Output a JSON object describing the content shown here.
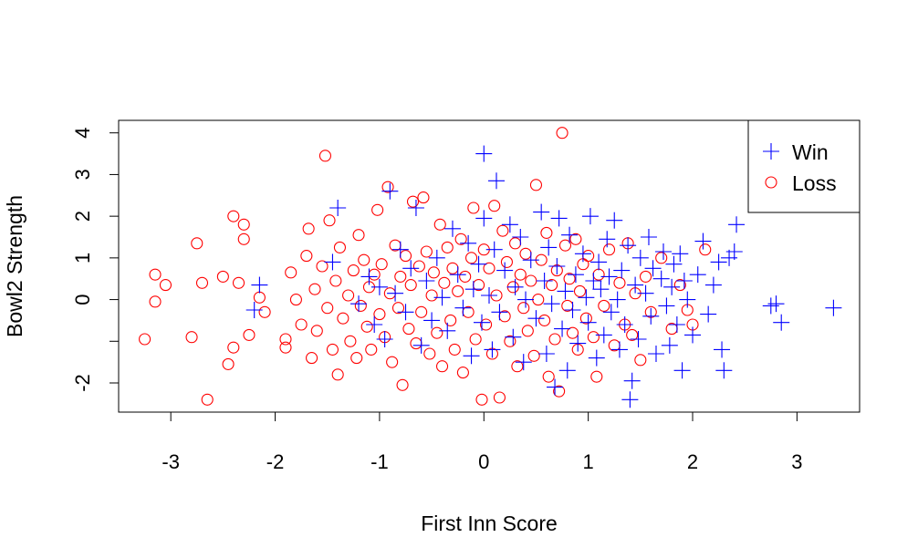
{
  "chart_data": {
    "type": "scatter",
    "title": "",
    "xlabel": "First Inn Score",
    "ylabel": "Bowl2 Strength",
    "xlim": [
      -3.5,
      3.6
    ],
    "ylim": [
      -2.7,
      4.3
    ],
    "xticks": [
      -3,
      -2,
      -1,
      0,
      1,
      2,
      3
    ],
    "yticks": [
      -2,
      -1,
      0,
      1,
      2,
      3,
      4
    ],
    "ytick_labels": [
      "-2",
      "",
      "0",
      "1",
      "2",
      "3",
      "4"
    ],
    "grid": false,
    "legend_position": "top-right",
    "series": [
      {
        "name": "Win",
        "marker": "plus",
        "color": "#0000ff",
        "points": [
          [
            -2.15,
            0.35
          ],
          [
            -2.2,
            -0.25
          ],
          [
            -1.45,
            0.9
          ],
          [
            -1.4,
            2.2
          ],
          [
            -1.2,
            -0.1
          ],
          [
            -1.1,
            0.55
          ],
          [
            -1.05,
            -0.6
          ],
          [
            -1.0,
            0.3
          ],
          [
            -0.95,
            -0.95
          ],
          [
            -0.9,
            2.6
          ],
          [
            -0.85,
            0.15
          ],
          [
            -0.8,
            1.2
          ],
          [
            -0.75,
            -0.3
          ],
          [
            -0.7,
            0.75
          ],
          [
            -0.65,
            2.2
          ],
          [
            -0.6,
            -1.1
          ],
          [
            -0.55,
            0.45
          ],
          [
            -0.5,
            -0.5
          ],
          [
            -0.45,
            1.0
          ],
          [
            -0.4,
            0.05
          ],
          [
            -0.35,
            -0.75
          ],
          [
            -0.3,
            1.7
          ],
          [
            -0.25,
            0.6
          ],
          [
            -0.2,
            -0.2
          ],
          [
            -0.15,
            1.35
          ],
          [
            -0.12,
            -1.35
          ],
          [
            -0.1,
            0.25
          ],
          [
            -0.05,
            0.85
          ],
          [
            -0.02,
            -0.55
          ],
          [
            0.0,
            1.95
          ],
          [
            0.0,
            3.5
          ],
          [
            0.05,
            0.1
          ],
          [
            0.08,
            -1.2
          ],
          [
            0.1,
            1.2
          ],
          [
            0.12,
            2.85
          ],
          [
            0.15,
            -0.3
          ],
          [
            0.2,
            0.7
          ],
          [
            0.25,
            1.8
          ],
          [
            0.28,
            -0.9
          ],
          [
            0.3,
            0.3
          ],
          [
            0.35,
            1.5
          ],
          [
            0.38,
            -1.5
          ],
          [
            0.4,
            0.0
          ],
          [
            0.45,
            0.95
          ],
          [
            0.5,
            -0.45
          ],
          [
            0.55,
            2.1
          ],
          [
            0.58,
            0.45
          ],
          [
            0.6,
            -1.3
          ],
          [
            0.62,
            1.25
          ],
          [
            0.65,
            -0.1
          ],
          [
            0.68,
            -2.1
          ],
          [
            0.7,
            0.8
          ],
          [
            0.72,
            1.95
          ],
          [
            0.75,
            -0.7
          ],
          [
            0.78,
            0.2
          ],
          [
            0.8,
            -1.7
          ],
          [
            0.82,
            1.55
          ],
          [
            0.85,
            -0.25
          ],
          [
            0.88,
            0.6
          ],
          [
            0.9,
            -1.05
          ],
          [
            0.95,
            1.1
          ],
          [
            0.98,
            0.05
          ],
          [
            1.0,
            -0.55
          ],
          [
            1.02,
            2.0
          ],
          [
            1.05,
            0.45
          ],
          [
            1.08,
            -1.4
          ],
          [
            1.1,
            0.9
          ],
          [
            1.12,
            0.25
          ],
          [
            1.15,
            -0.85
          ],
          [
            1.18,
            1.45
          ],
          [
            1.2,
            0.55
          ],
          [
            1.22,
            -0.3
          ],
          [
            1.25,
            1.9
          ],
          [
            1.28,
            0.0
          ],
          [
            1.3,
            -1.2
          ],
          [
            1.32,
            0.7
          ],
          [
            1.35,
            -0.6
          ],
          [
            1.38,
            1.3
          ],
          [
            1.4,
            -2.4
          ],
          [
            1.42,
            -1.95
          ],
          [
            1.45,
            0.35
          ],
          [
            1.48,
            -0.95
          ],
          [
            1.5,
            1.0
          ],
          [
            1.55,
            0.15
          ],
          [
            1.58,
            1.5
          ],
          [
            1.6,
            -0.4
          ],
          [
            1.62,
            0.75
          ],
          [
            1.65,
            -1.3
          ],
          [
            1.7,
            0.5
          ],
          [
            1.72,
            1.15
          ],
          [
            1.75,
            -0.15
          ],
          [
            1.78,
            -1.1
          ],
          [
            1.8,
            0.3
          ],
          [
            1.82,
            0.85
          ],
          [
            1.85,
            -0.6
          ],
          [
            1.88,
            1.1
          ],
          [
            1.9,
            -1.7
          ],
          [
            1.92,
            0.45
          ],
          [
            1.95,
            0.0
          ],
          [
            2.0,
            -0.85
          ],
          [
            2.05,
            0.6
          ],
          [
            2.1,
            1.4
          ],
          [
            2.15,
            -0.35
          ],
          [
            2.2,
            0.35
          ],
          [
            2.25,
            0.9
          ],
          [
            2.28,
            -1.2
          ],
          [
            2.3,
            -1.7
          ],
          [
            2.35,
            1.0
          ],
          [
            2.4,
            1.15
          ],
          [
            2.42,
            1.8
          ],
          [
            2.75,
            -0.15
          ],
          [
            2.8,
            -0.1
          ],
          [
            2.85,
            -0.55
          ],
          [
            3.35,
            -0.2
          ]
        ]
      },
      {
        "name": "Loss",
        "marker": "circle",
        "color": "#ff0000",
        "points": [
          [
            -3.25,
            -0.95
          ],
          [
            -3.15,
            0.6
          ],
          [
            -3.15,
            -0.05
          ],
          [
            -3.05,
            0.35
          ],
          [
            -2.8,
            -0.9
          ],
          [
            -2.75,
            1.35
          ],
          [
            -2.7,
            0.4
          ],
          [
            -2.65,
            -2.4
          ],
          [
            -2.5,
            0.55
          ],
          [
            -2.45,
            -1.55
          ],
          [
            -2.4,
            2.0
          ],
          [
            -2.4,
            -1.15
          ],
          [
            -2.35,
            0.4
          ],
          [
            -2.3,
            1.8
          ],
          [
            -2.3,
            1.45
          ],
          [
            -2.25,
            -0.85
          ],
          [
            -2.15,
            0.05
          ],
          [
            -2.1,
            -0.3
          ],
          [
            -1.9,
            -0.95
          ],
          [
            -1.9,
            -1.15
          ],
          [
            -1.85,
            0.65
          ],
          [
            -1.8,
            0.0
          ],
          [
            -1.75,
            -0.6
          ],
          [
            -1.7,
            1.05
          ],
          [
            -1.68,
            1.7
          ],
          [
            -1.65,
            -1.4
          ],
          [
            -1.62,
            0.25
          ],
          [
            -1.6,
            -0.75
          ],
          [
            -1.55,
            0.8
          ],
          [
            -1.52,
            3.45
          ],
          [
            -1.5,
            -0.2
          ],
          [
            -1.48,
            1.9
          ],
          [
            -1.45,
            -1.2
          ],
          [
            -1.42,
            0.45
          ],
          [
            -1.4,
            -1.8
          ],
          [
            -1.38,
            1.25
          ],
          [
            -1.35,
            -0.45
          ],
          [
            -1.3,
            0.1
          ],
          [
            -1.28,
            -1.0
          ],
          [
            -1.25,
            0.7
          ],
          [
            -1.22,
            -1.4
          ],
          [
            -1.2,
            1.55
          ],
          [
            -1.18,
            -0.15
          ],
          [
            -1.15,
            0.95
          ],
          [
            -1.12,
            -0.65
          ],
          [
            -1.1,
            0.3
          ],
          [
            -1.08,
            -1.2
          ],
          [
            -1.05,
            0.6
          ],
          [
            -1.02,
            2.15
          ],
          [
            -1.0,
            -0.35
          ],
          [
            -0.98,
            0.85
          ],
          [
            -0.95,
            -0.9
          ],
          [
            -0.92,
            2.7
          ],
          [
            -0.9,
            0.15
          ],
          [
            -0.88,
            -1.5
          ],
          [
            -0.85,
            1.3
          ],
          [
            -0.82,
            -0.2
          ],
          [
            -0.8,
            0.55
          ],
          [
            -0.78,
            -2.05
          ],
          [
            -0.75,
            1.05
          ],
          [
            -0.72,
            -0.7
          ],
          [
            -0.7,
            0.35
          ],
          [
            -0.68,
            2.35
          ],
          [
            -0.65,
            -1.05
          ],
          [
            -0.62,
            0.8
          ],
          [
            -0.6,
            -0.3
          ],
          [
            -0.58,
            2.45
          ],
          [
            -0.55,
            1.15
          ],
          [
            -0.52,
            -1.3
          ],
          [
            -0.5,
            0.1
          ],
          [
            -0.48,
            0.65
          ],
          [
            -0.45,
            -0.8
          ],
          [
            -0.42,
            1.8
          ],
          [
            -0.4,
            -1.6
          ],
          [
            -0.38,
            0.4
          ],
          [
            -0.35,
            1.25
          ],
          [
            -0.32,
            -0.5
          ],
          [
            -0.3,
            0.75
          ],
          [
            -0.28,
            -1.2
          ],
          [
            -0.25,
            0.2
          ],
          [
            -0.22,
            1.45
          ],
          [
            -0.2,
            -1.75
          ],
          [
            -0.18,
            0.55
          ],
          [
            -0.15,
            -0.3
          ],
          [
            -0.12,
            1.0
          ],
          [
            -0.1,
            2.2
          ],
          [
            -0.08,
            -0.95
          ],
          [
            -0.05,
            0.35
          ],
          [
            -0.02,
            -2.4
          ],
          [
            0.0,
            1.2
          ],
          [
            0.02,
            -0.6
          ],
          [
            0.05,
            0.75
          ],
          [
            0.08,
            -1.3
          ],
          [
            0.1,
            2.25
          ],
          [
            0.12,
            0.1
          ],
          [
            0.15,
            -2.35
          ],
          [
            0.18,
            1.65
          ],
          [
            0.2,
            -0.4
          ],
          [
            0.22,
            0.9
          ],
          [
            0.25,
            -1.0
          ],
          [
            0.28,
            0.3
          ],
          [
            0.3,
            1.35
          ],
          [
            0.32,
            -1.6
          ],
          [
            0.35,
            0.6
          ],
          [
            0.38,
            -0.2
          ],
          [
            0.4,
            1.1
          ],
          [
            0.42,
            -0.75
          ],
          [
            0.45,
            0.45
          ],
          [
            0.48,
            -1.35
          ],
          [
            0.5,
            2.75
          ],
          [
            0.52,
            0.0
          ],
          [
            0.55,
            0.95
          ],
          [
            0.58,
            -0.5
          ],
          [
            0.6,
            1.6
          ],
          [
            0.62,
            -1.85
          ],
          [
            0.65,
            0.35
          ],
          [
            0.68,
            -0.95
          ],
          [
            0.7,
            0.7
          ],
          [
            0.72,
            -2.2
          ],
          [
            0.75,
            4.0
          ],
          [
            0.78,
            1.3
          ],
          [
            0.8,
            -0.15
          ],
          [
            0.82,
            0.5
          ],
          [
            0.85,
            -0.8
          ],
          [
            0.88,
            1.45
          ],
          [
            0.9,
            -1.2
          ],
          [
            0.92,
            0.2
          ],
          [
            0.95,
            0.85
          ],
          [
            0.98,
            -0.45
          ],
          [
            1.0,
            1.05
          ],
          [
            1.05,
            -0.9
          ],
          [
            1.08,
            -1.85
          ],
          [
            1.1,
            0.6
          ],
          [
            1.15,
            -0.15
          ],
          [
            1.2,
            1.2
          ],
          [
            1.25,
            -1.1
          ],
          [
            1.3,
            0.4
          ],
          [
            1.35,
            -0.6
          ],
          [
            1.38,
            1.35
          ],
          [
            1.42,
            -0.85
          ],
          [
            1.45,
            0.15
          ],
          [
            1.5,
            -1.45
          ],
          [
            1.55,
            0.55
          ],
          [
            1.6,
            -0.3
          ],
          [
            1.7,
            1.0
          ],
          [
            1.8,
            -0.7
          ],
          [
            1.88,
            0.35
          ],
          [
            1.95,
            -0.25
          ],
          [
            2.0,
            -0.6
          ],
          [
            2.12,
            1.2
          ]
        ]
      }
    ]
  }
}
